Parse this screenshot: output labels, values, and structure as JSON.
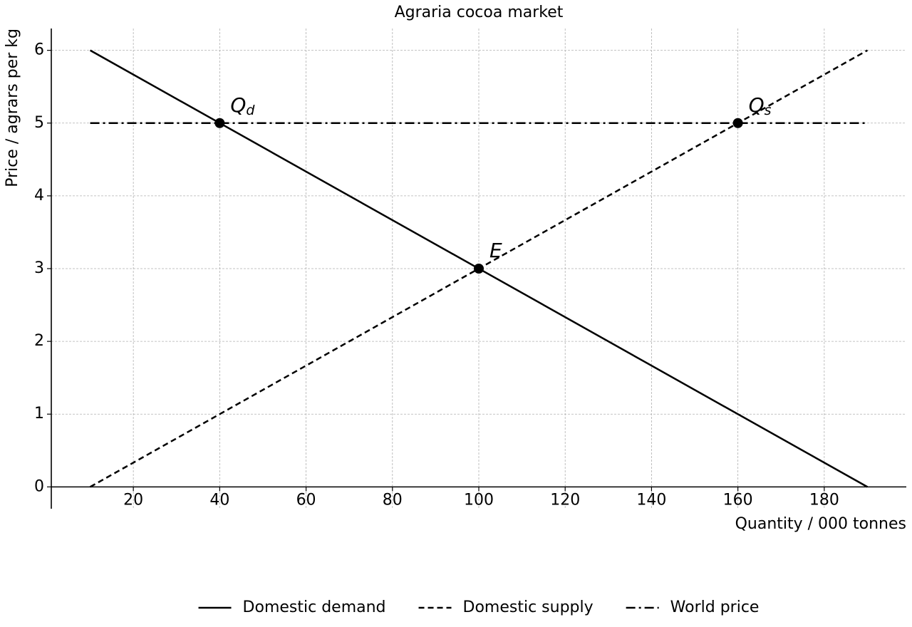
{
  "chart_data": {
    "type": "line",
    "title": "Agraria cocoa market",
    "xlabel": "Quantity / 000 tonnes",
    "ylabel": "Price / agrars per kg",
    "xlim": [
      1,
      199
    ],
    "ylim": [
      -0.3,
      6.3
    ],
    "xticks": [
      20,
      40,
      60,
      80,
      100,
      120,
      140,
      160,
      180
    ],
    "yticks": [
      0,
      1,
      2,
      3,
      4,
      5,
      6
    ],
    "grid": true,
    "legend": "bottom",
    "series": [
      {
        "name": "Domestic demand",
        "color": "#000000",
        "style": "solid",
        "x": [
          10,
          190
        ],
        "values": [
          6,
          0
        ]
      },
      {
        "name": "Domestic supply",
        "color": "#000000",
        "style": "dashed",
        "x": [
          10,
          190
        ],
        "values": [
          0,
          6
        ]
      },
      {
        "name": "World price",
        "color": "#000000",
        "style": "dashdot",
        "x": [
          10,
          190
        ],
        "values": [
          5,
          5
        ]
      }
    ],
    "points": [
      {
        "x": 40,
        "y": 5,
        "label": "Q",
        "sub": "d"
      },
      {
        "x": 160,
        "y": 5,
        "label": "Q",
        "sub": "s"
      },
      {
        "x": 100,
        "y": 3,
        "label": "E"
      }
    ]
  }
}
